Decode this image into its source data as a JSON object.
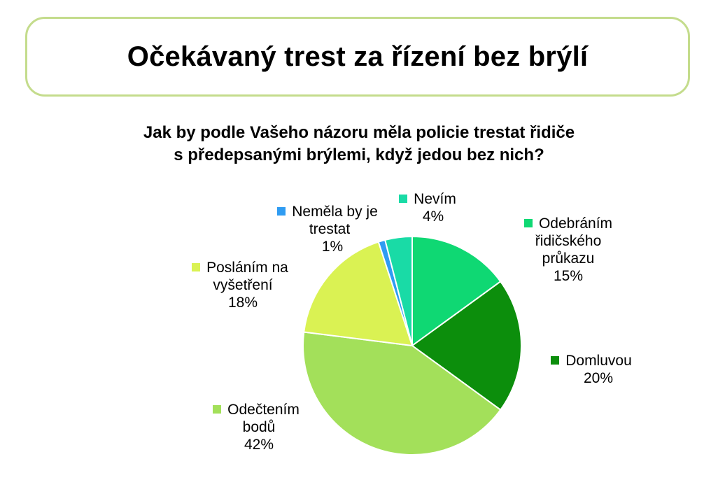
{
  "title": "Očekávaný trest za řízení bez brýlí",
  "subtitle_lines": [
    "Jak by podle Vašeho názoru měla policie trestat řidiče",
    "s předepsanými brýlemi, když jedou bez nich?"
  ],
  "chart_data": {
    "type": "pie",
    "title": "Jak by podle Vašeho názoru měla policie trestat řidiče s předepsanými brýlemi, když jedou bez nich?",
    "start": "12 o'clock",
    "direction": "clockwise",
    "slices": [
      {
        "label_lines": [
          "Odebráním",
          "řidičského",
          "průkazu"
        ],
        "value": 15,
        "value_label": "15%",
        "color": "#0fd873"
      },
      {
        "label_lines": [
          "Domluvou"
        ],
        "value": 20,
        "value_label": "20%",
        "color": "#0c8e0c"
      },
      {
        "label_lines": [
          "Odečtením",
          "bodů"
        ],
        "value": 42,
        "value_label": "42%",
        "color": "#a3e05a"
      },
      {
        "label_lines": [
          "Posláním na",
          "vyšetření"
        ],
        "value": 18,
        "value_label": "18%",
        "color": "#daf253"
      },
      {
        "label_lines": [
          "Neměla by je",
          "trestat"
        ],
        "value": 1,
        "value_label": "1%",
        "color": "#2f9cf2"
      },
      {
        "label_lines": [
          "Nevím"
        ],
        "value": 4,
        "value_label": "4%",
        "color": "#19dba6"
      }
    ]
  }
}
